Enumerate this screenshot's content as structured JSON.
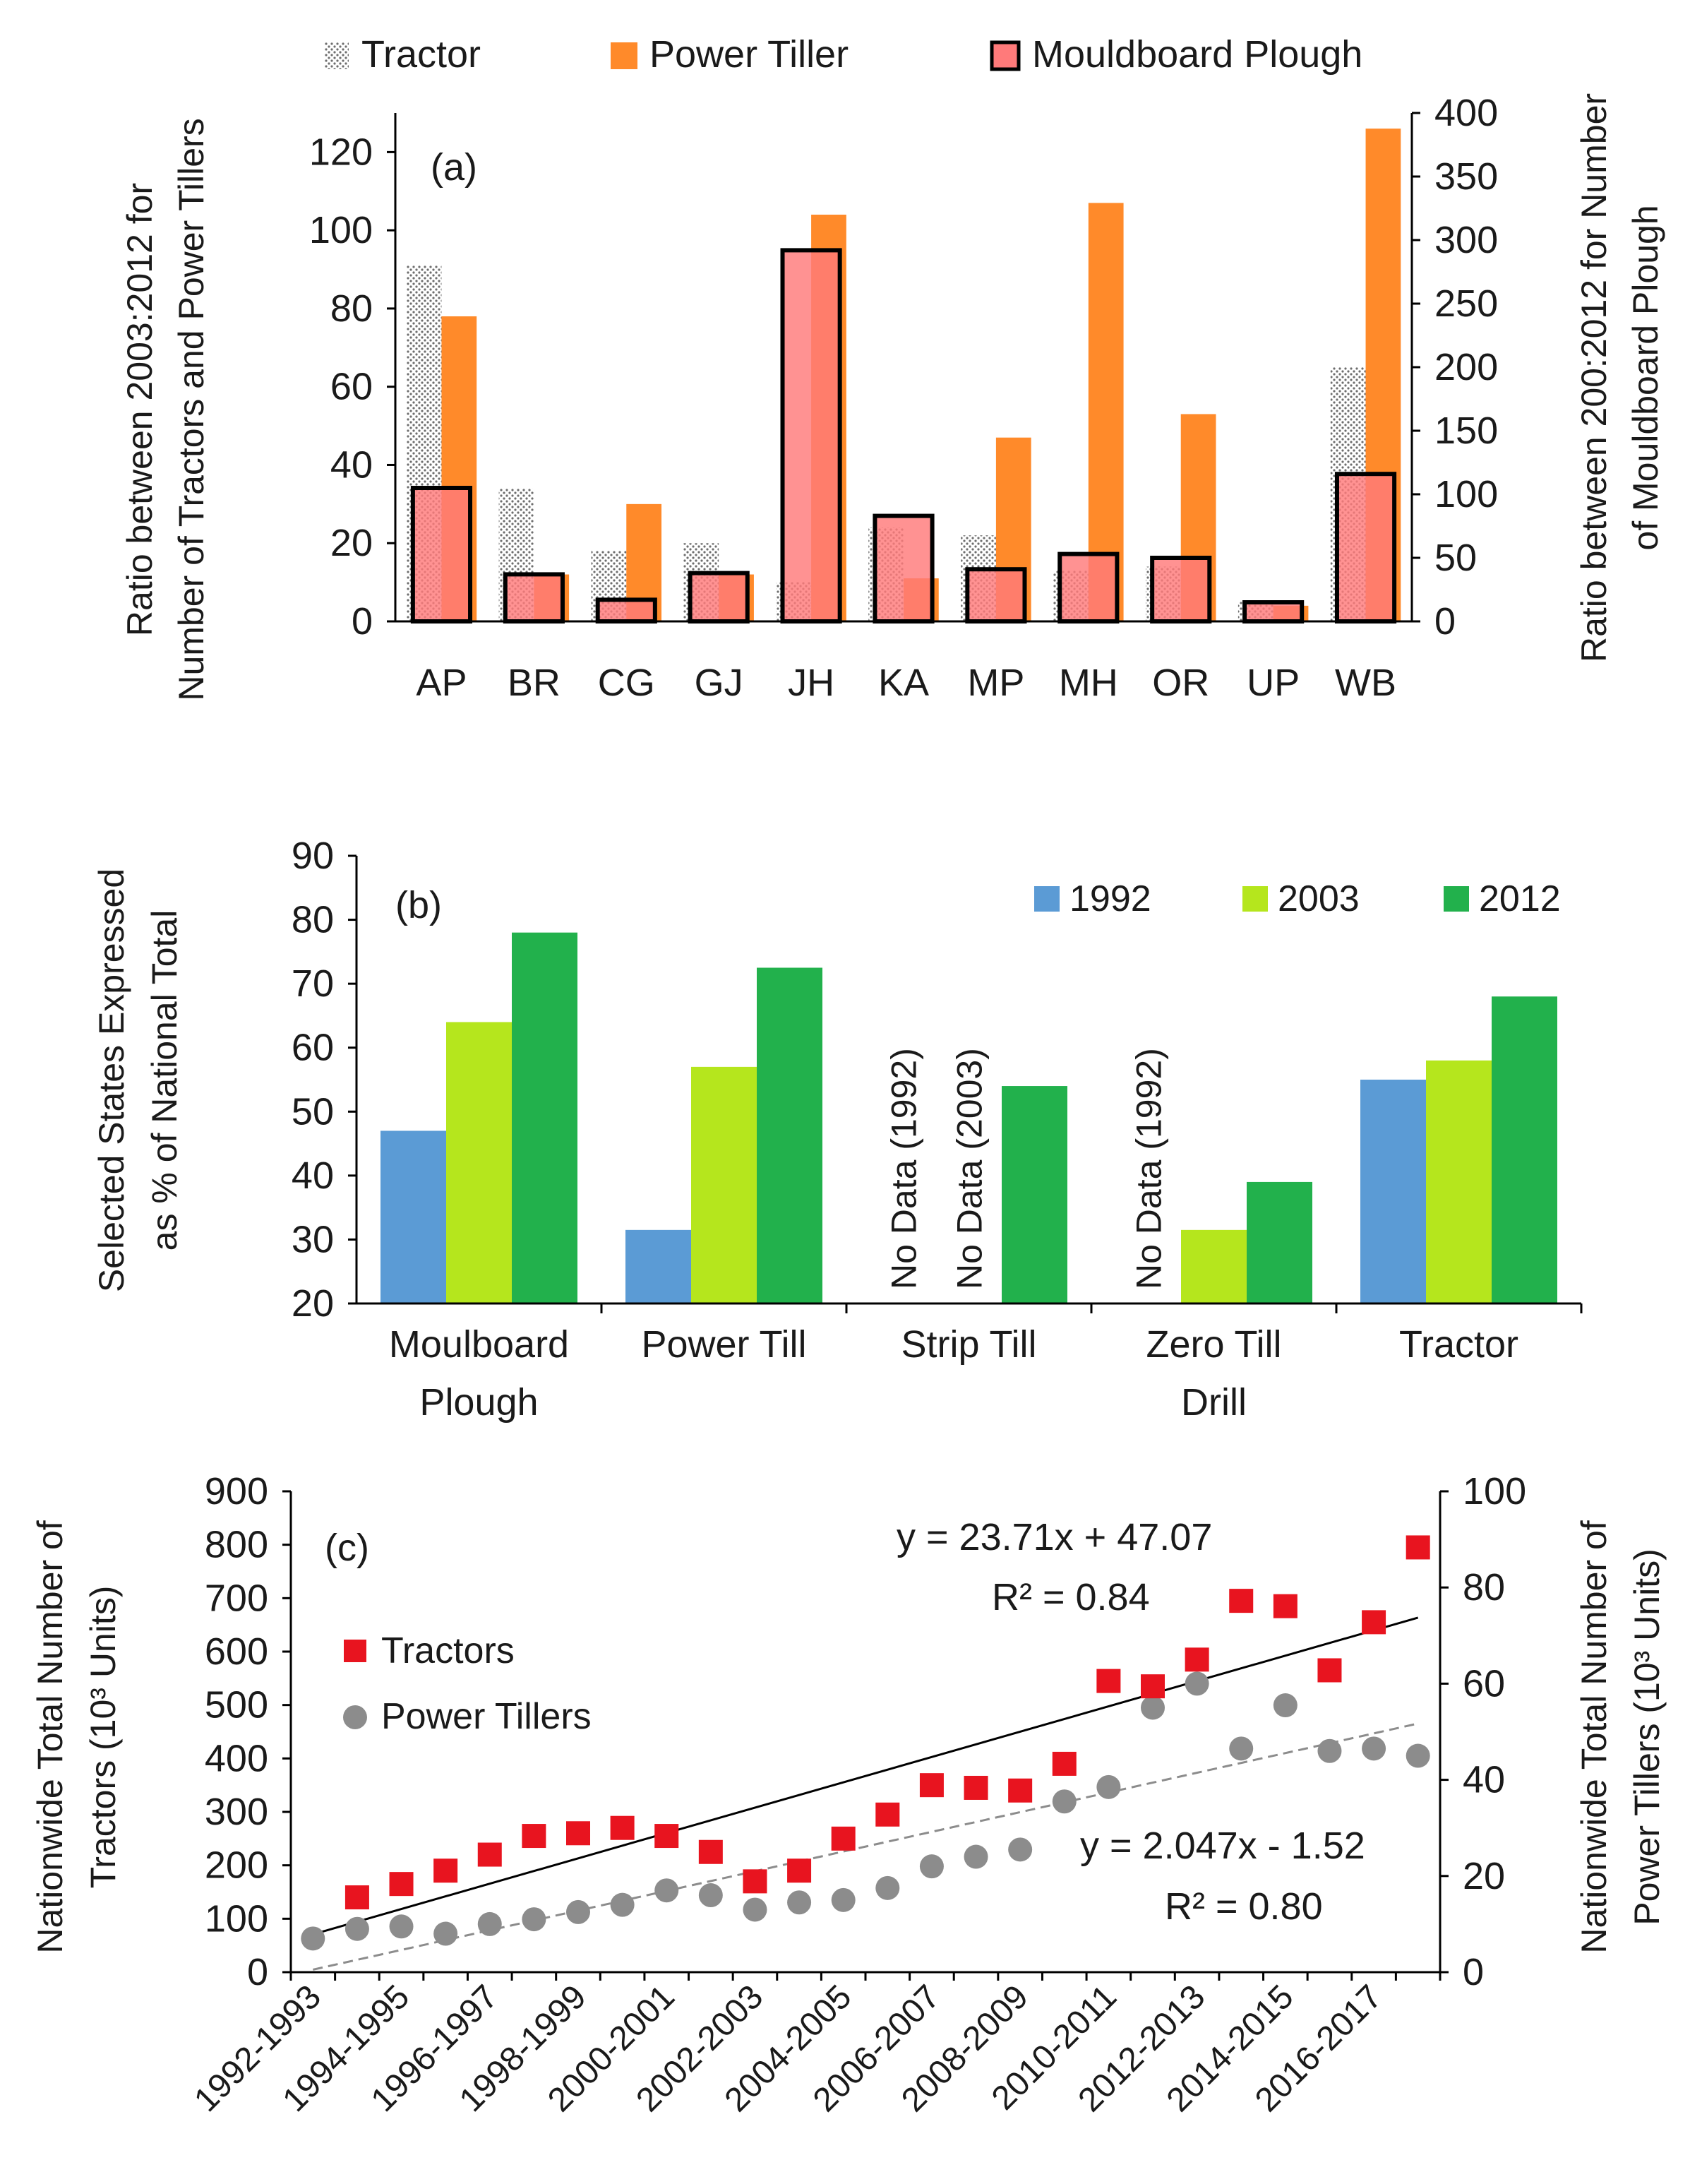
{
  "chart_data": [
    {
      "panel": "(a)",
      "type": "bar",
      "categories": [
        "AP",
        "BR",
        "CG",
        "GJ",
        "JH",
        "KA",
        "MP",
        "MH",
        "OR",
        "UP",
        "WB"
      ],
      "series": [
        {
          "name": "Tractor",
          "axis": "left",
          "color": "#9a9a9a",
          "values": [
            91,
            34,
            18,
            20,
            10,
            24,
            22,
            13,
            14,
            5,
            65
          ]
        },
        {
          "name": "Power Tiller",
          "axis": "left",
          "color": "#ff8a2a",
          "values": [
            78,
            12,
            30,
            12,
            104,
            11,
            47,
            107,
            53,
            4,
            126
          ]
        },
        {
          "name": "Mouldboard Plough",
          "axis": "right",
          "color": "#ff7a7a",
          "values": [
            105,
            37,
            17,
            38,
            292,
            83,
            41,
            53,
            50,
            15,
            116
          ]
        }
      ],
      "legend": [
        "Tractor",
        "Power Tiller",
        "Mouldboard Plough"
      ],
      "ylabel": "Ratio between 2003:2012 for Number of Tractors and Power Tillers",
      "ylabel_lines": [
        "Ratio between 2003:2012 for",
        "Number of Tractors and Power Tillers"
      ],
      "y2label": "Ratio between 200:2012 for Number of Mouldboard Plough",
      "y2label_lines": [
        "Ratio between 200:2012 for Number",
        "of Mouldboard Plough"
      ],
      "ylim": [
        0,
        130
      ],
      "yticks": [
        0,
        20,
        40,
        60,
        80,
        100,
        120
      ],
      "y2lim": [
        0,
        400
      ],
      "y2ticks": [
        0,
        50,
        100,
        150,
        200,
        250,
        300,
        350,
        400
      ]
    },
    {
      "panel": "(b)",
      "type": "bar",
      "categories": [
        "Moulboard\nPlough",
        "Power Till",
        "Strip Till",
        "Zero Till\nDrill",
        "Tractor"
      ],
      "category_lines": [
        [
          "Moulboard",
          "Plough"
        ],
        [
          "Power Till"
        ],
        [
          "Strip Till"
        ],
        [
          "Zero Till",
          "Drill"
        ],
        [
          "Tractor"
        ]
      ],
      "series": [
        {
          "name": "1992",
          "color": "#5b9bd5",
          "values": [
            47,
            31.5,
            null,
            null,
            55
          ]
        },
        {
          "name": "2003",
          "color": "#b5e61d",
          "values": [
            64,
            57,
            null,
            31.5,
            58
          ]
        },
        {
          "name": "2012",
          "color": "#22b14c",
          "values": [
            78,
            72.5,
            54,
            39,
            68
          ]
        }
      ],
      "annotations": [
        {
          "category": 2,
          "series": 0,
          "text": "No Data (1992)"
        },
        {
          "category": 2,
          "series": 1,
          "text": "No Data (2003)"
        },
        {
          "category": 3,
          "series": 0,
          "text": "No Data (1992)"
        }
      ],
      "ylabel": "Selected States Expressed as % of National Total",
      "ylabel_lines": [
        "Selected States Expressed",
        "as % of National Total"
      ],
      "ylim": [
        20,
        90
      ],
      "yticks": [
        20,
        30,
        40,
        50,
        60,
        70,
        80,
        90
      ]
    },
    {
      "panel": "(c)",
      "type": "scatter",
      "x": [
        "1992-1993",
        "1993-1994",
        "1994-1995",
        "1995-1996",
        "1996-1997",
        "1997-1998",
        "1998-1999",
        "1999-2000",
        "2000-2001",
        "2001-2002",
        "2002-2003",
        "2003-2004",
        "2004-2005",
        "2005-2006",
        "2006-2007",
        "2007-2008",
        "2008-2009",
        "2009-2010",
        "2010-2011",
        "2011-2012",
        "2012-2013",
        "2013-2014",
        "2014-2015",
        "2015-2016",
        "2016-2017",
        "2017-2018"
      ],
      "xticks_shown": [
        "1992-1993",
        "1994-1995",
        "1996-1997",
        "1998-1999",
        "2000-2001",
        "2002-2003",
        "2004-2005",
        "2006-2007",
        "2008-2009",
        "2010-2011",
        "2012-2013",
        "2014-2015",
        "2016-2017"
      ],
      "series": [
        {
          "name": "Tractors",
          "axis": "left",
          "marker": "square",
          "color": "#e8141f",
          "values": [
            null,
            140,
            165,
            190,
            220,
            255,
            260,
            270,
            255,
            225,
            170,
            190,
            250,
            295,
            350,
            345,
            340,
            390,
            545,
            535,
            585,
            695,
            685,
            565,
            655,
            795
          ]
        },
        {
          "name": "Power Tillers",
          "axis": "right",
          "marker": "circle",
          "color": "#8c8c8c",
          "values": [
            7,
            9,
            9.5,
            8,
            10,
            11,
            12.5,
            14,
            17,
            16,
            13,
            14.5,
            15,
            17.5,
            22,
            24,
            25.5,
            35.5,
            38.5,
            55,
            60,
            46.5,
            55.5,
            46,
            46.5,
            45
          ]
        }
      ],
      "trendlines": [
        {
          "series": "Tractors",
          "equation": "y = 23.71x + 47.07",
          "r2": "R² = 0.84",
          "slope": 23.71,
          "intercept": 47.07,
          "style": "solid"
        },
        {
          "series": "Power Tillers",
          "equation": "y = 2.047x - 1.52",
          "r2": "R² = 0.80",
          "slope": 2.047,
          "intercept": -1.52,
          "style": "dashed"
        }
      ],
      "ylabel": "Nationwide Total Number of Tractors (10³ Units)",
      "ylabel_lines": [
        "Nationwide Total Number of",
        "Tractors (10³ Units)"
      ],
      "y2label": "Nationwide Total Number of Power Tillers (10³ Units)",
      "y2label_lines": [
        "Nationwide Total Number of",
        "Power Tillers (10³ Units)"
      ],
      "ylim": [
        0,
        900
      ],
      "yticks": [
        0,
        100,
        200,
        300,
        400,
        500,
        600,
        700,
        800,
        900
      ],
      "y2lim": [
        0,
        100
      ],
      "y2ticks": [
        0,
        20,
        40,
        60,
        80,
        100
      ]
    }
  ]
}
